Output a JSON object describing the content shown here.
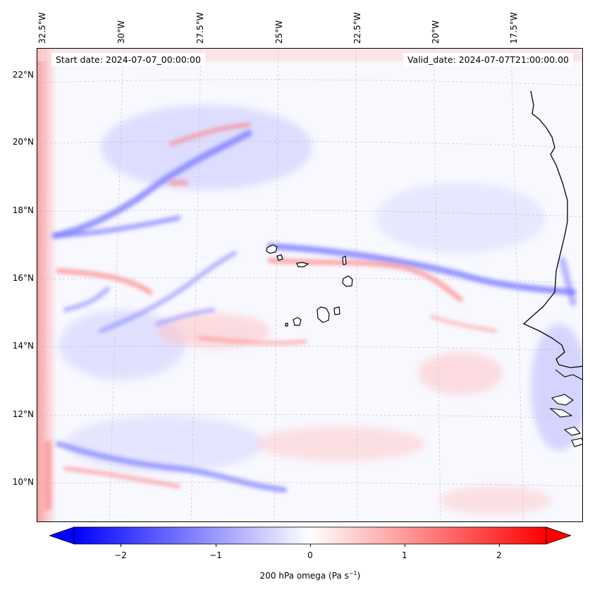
{
  "header": {
    "start_date": "Start date: 2024-07-07_00:00:00",
    "valid_date": "Valid_date: 2024-07-07T21:00:00.00"
  },
  "map": {
    "lon_labels": [
      "32.5°W",
      "30°W",
      "27.5°W",
      "25°W",
      "22.5°W",
      "20°W",
      "17.5°W"
    ],
    "lat_labels": [
      "22°N",
      "20°N",
      "18°N",
      "16°N",
      "14°N",
      "12°N",
      "10°N"
    ],
    "colors": {
      "negative": "#0000ff",
      "zero": "#ffffff",
      "positive": "#ff0000",
      "coast": "#000000"
    },
    "gridlines": true
  },
  "colorbar": {
    "ticks": [
      "−2",
      "−1",
      "0",
      "1",
      "2"
    ],
    "tick_values": [
      -2,
      -1,
      0,
      1,
      2
    ],
    "range": [
      -2.6,
      2.6
    ],
    "extend": "both",
    "label_main": "200 hPa omega (Pa s",
    "label_sup": "−1",
    "label_end": ")"
  }
}
